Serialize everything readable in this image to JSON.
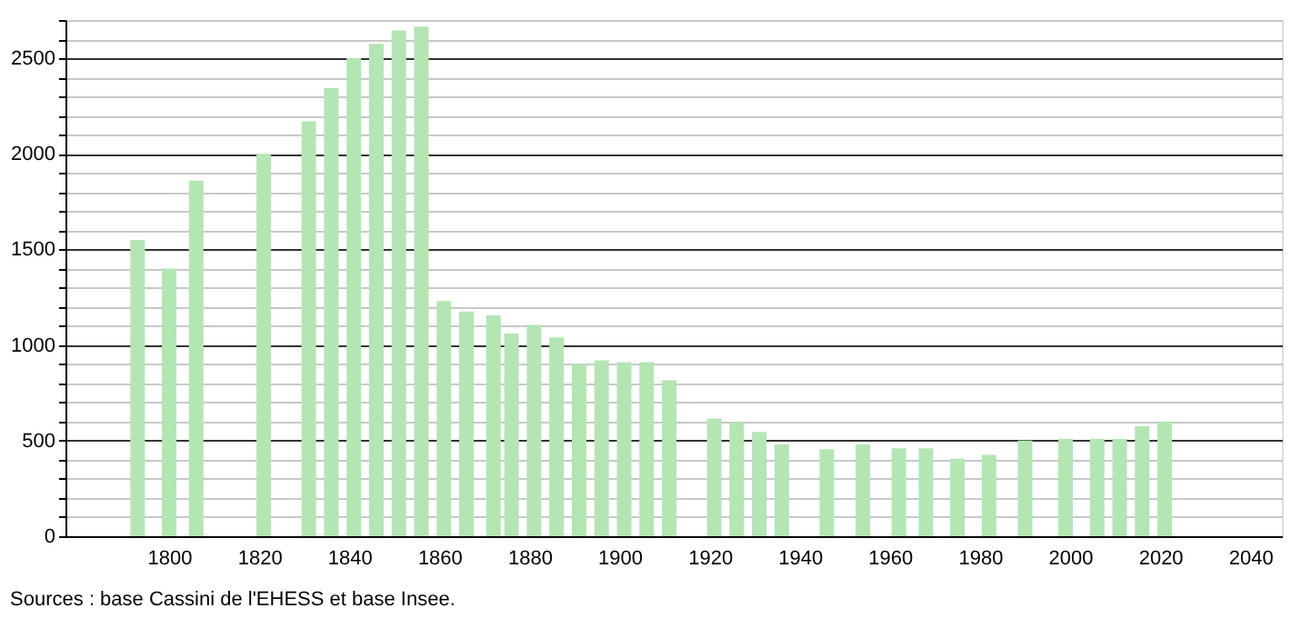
{
  "chart_data": {
    "type": "bar",
    "x": [
      1793,
      1800,
      1806,
      1821,
      1831,
      1836,
      1841,
      1846,
      1851,
      1856,
      1861,
      1866,
      1872,
      1876,
      1881,
      1886,
      1891,
      1896,
      1901,
      1906,
      1911,
      1921,
      1926,
      1931,
      1936,
      1946,
      1954,
      1962,
      1968,
      1975,
      1982,
      1990,
      1999,
      2006,
      2011,
      2016,
      2021
    ],
    "values": [
      1550,
      1400,
      1860,
      2000,
      2170,
      2345,
      2500,
      2575,
      2645,
      2665,
      1230,
      1175,
      1155,
      1060,
      1105,
      1040,
      900,
      920,
      910,
      910,
      815,
      615,
      595,
      545,
      480,
      455,
      480,
      460,
      460,
      405,
      425,
      500,
      510,
      510,
      510,
      575,
      600
    ],
    "color": "#b3e6b3",
    "xlim": [
      1779,
      2045
    ],
    "xticks": [
      1800,
      1820,
      1840,
      1860,
      1880,
      1900,
      1920,
      1940,
      1960,
      1980,
      2000,
      2020,
      2040
    ],
    "ylim": [
      0,
      2700
    ],
    "yticks": [
      0,
      {
        "value": 100,
        "label": null
      },
      {
        "value": 200,
        "label": null
      },
      {
        "value": 300,
        "label": null
      },
      {
        "value": 400,
        "label": null
      },
      500,
      {
        "value": 600,
        "label": null
      },
      {
        "value": 700,
        "label": null
      },
      {
        "value": 800,
        "label": null
      },
      {
        "value": 900,
        "label": null
      },
      1000,
      {
        "value": 1100,
        "label": null
      },
      {
        "value": 1200,
        "label": null
      },
      {
        "value": 1300,
        "label": null
      },
      {
        "value": 1400,
        "label": null
      },
      1500,
      {
        "value": 1600,
        "label": null
      },
      {
        "value": 1700,
        "label": null
      },
      {
        "value": 1800,
        "label": null
      },
      {
        "value": 1900,
        "label": null
      },
      2000,
      {
        "value": 2100,
        "label": null
      },
      {
        "value": 2200,
        "label": null
      },
      {
        "value": 2300,
        "label": null
      },
      {
        "value": 2400,
        "label": null
      },
      2500,
      {
        "value": 2600,
        "label": null
      },
      {
        "value": 2700,
        "label": null
      }
    ],
    "grid": "y",
    "annotations": [
      "Sources : base Cassini de l'EHESS et base Insee."
    ]
  }
}
